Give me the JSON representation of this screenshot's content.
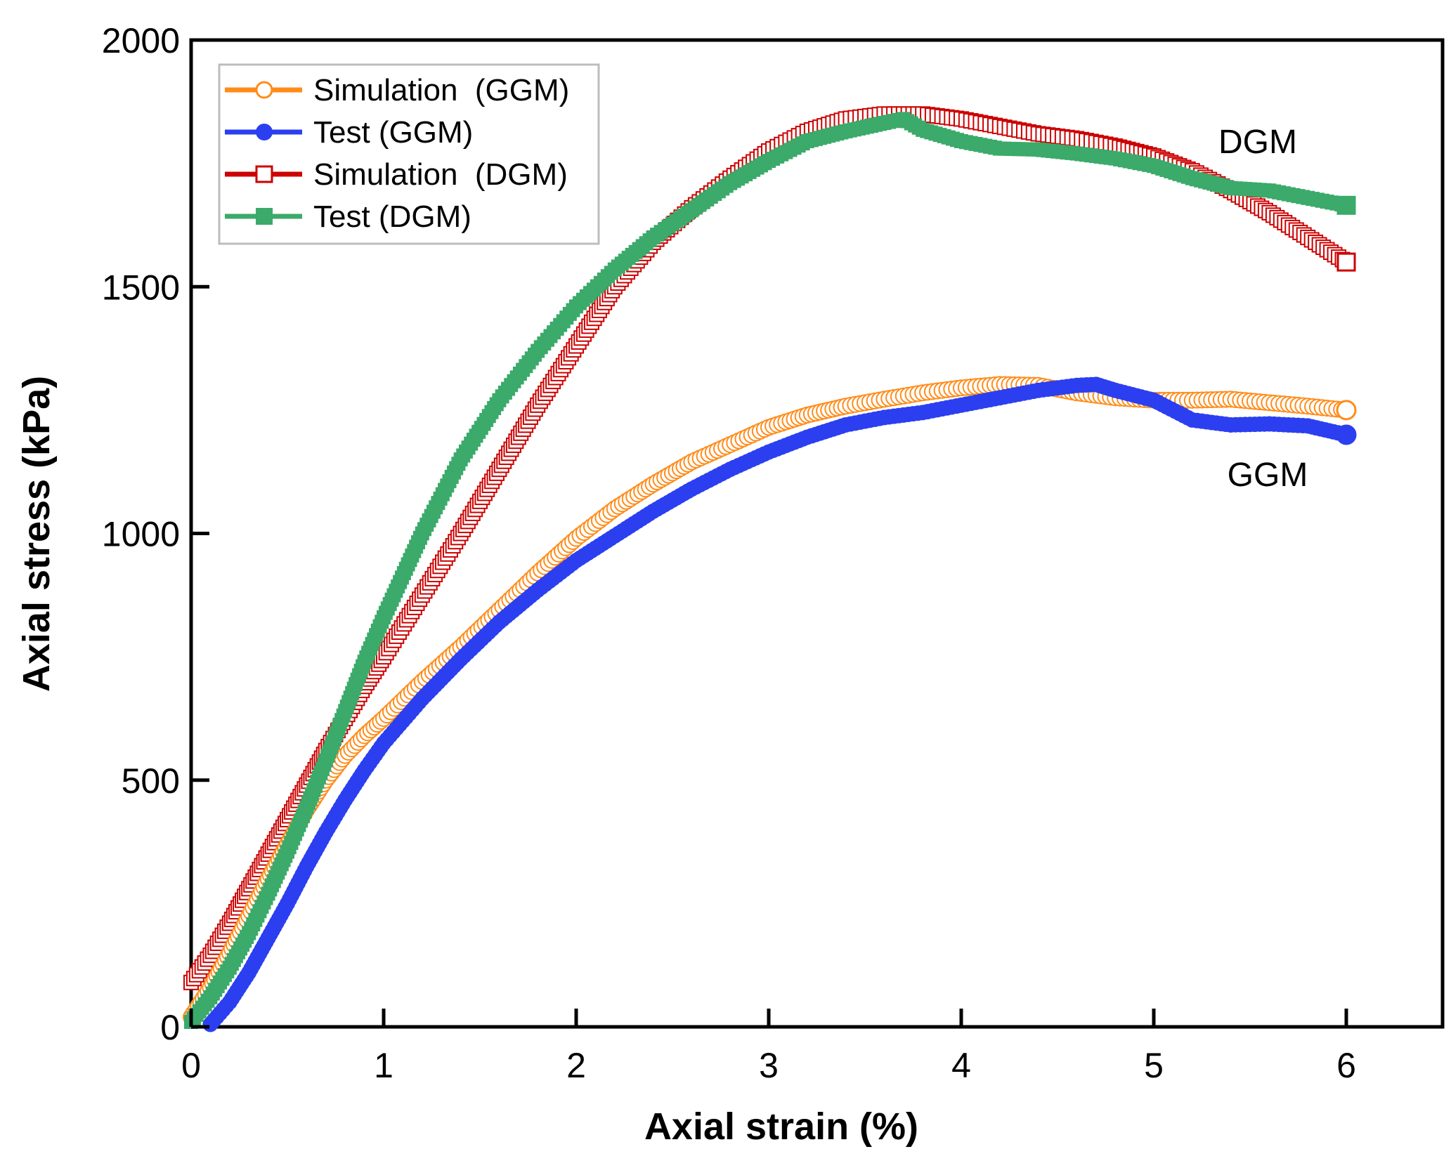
{
  "chart_data": {
    "type": "line",
    "title": "",
    "xlabel": "Axial strain (%)",
    "ylabel": "Axial stress (kPa)",
    "xlim": [
      0,
      6.5
    ],
    "ylim": [
      0,
      2000
    ],
    "xticks": [
      0,
      1,
      2,
      3,
      4,
      5,
      6
    ],
    "yticks": [
      0,
      500,
      1000,
      1500,
      2000
    ],
    "xtick_labels": [
      "0",
      "1",
      "2",
      "3",
      "4",
      "5",
      "6"
    ],
    "ytick_labels": [
      "0",
      "500",
      "1000",
      "1500",
      "2000"
    ],
    "grid": false,
    "legend_position": "top-left",
    "annotations": [
      {
        "text": "DGM",
        "x": 5.55,
        "y": 1790
      },
      {
        "text": "GGM",
        "x": 5.6,
        "y": 1115
      }
    ],
    "series": [
      {
        "name": "Simulation  (GGM)",
        "color": "#FF8C1A",
        "marker": "open-circle",
        "x": [
          0,
          0.1,
          0.2,
          0.3,
          0.4,
          0.5,
          0.6,
          0.7,
          0.8,
          0.9,
          1.0,
          1.2,
          1.4,
          1.6,
          1.8,
          2.0,
          2.2,
          2.4,
          2.6,
          2.8,
          3.0,
          3.2,
          3.4,
          3.6,
          3.8,
          4.0,
          4.2,
          4.4,
          4.6,
          4.8,
          5.0,
          5.2,
          5.4,
          5.6,
          5.8,
          6.0
        ],
        "y": [
          20,
          80,
          150,
          225,
          300,
          370,
          440,
          500,
          550,
          590,
          625,
          700,
          770,
          845,
          920,
          990,
          1050,
          1100,
          1145,
          1180,
          1215,
          1240,
          1258,
          1272,
          1285,
          1295,
          1302,
          1300,
          1285,
          1275,
          1270,
          1270,
          1272,
          1265,
          1258,
          1250
        ]
      },
      {
        "name": "Test (GGM)",
        "color": "#2B3FF0",
        "marker": "filled-circle",
        "x": [
          0.1,
          0.2,
          0.3,
          0.4,
          0.5,
          0.6,
          0.7,
          0.8,
          0.9,
          1.0,
          1.2,
          1.4,
          1.6,
          1.8,
          2.0,
          2.2,
          2.4,
          2.6,
          2.8,
          3.0,
          3.2,
          3.4,
          3.6,
          3.8,
          4.0,
          4.2,
          4.4,
          4.6,
          4.7,
          4.8,
          5.0,
          5.2,
          5.4,
          5.6,
          5.8,
          6.0
        ],
        "y": [
          5,
          50,
          110,
          180,
          250,
          325,
          395,
          460,
          520,
          575,
          665,
          745,
          820,
          885,
          945,
          995,
          1045,
          1090,
          1130,
          1165,
          1195,
          1220,
          1235,
          1245,
          1260,
          1275,
          1290,
          1300,
          1302,
          1290,
          1270,
          1230,
          1220,
          1222,
          1218,
          1200
        ]
      },
      {
        "name": "Simulation  (DGM)",
        "color": "#CC0000",
        "marker": "open-square",
        "x": [
          0,
          0.1,
          0.2,
          0.3,
          0.4,
          0.5,
          0.6,
          0.7,
          0.8,
          0.9,
          1.0,
          1.2,
          1.4,
          1.6,
          1.8,
          2.0,
          2.2,
          2.4,
          2.6,
          2.8,
          3.0,
          3.2,
          3.4,
          3.6,
          3.8,
          4.0,
          4.2,
          4.4,
          4.6,
          4.8,
          5.0,
          5.2,
          5.4,
          5.6,
          5.8,
          6.0
        ],
        "y": [
          90,
          145,
          210,
          280,
          350,
          420,
          490,
          560,
          625,
          690,
          750,
          875,
          1000,
          1130,
          1260,
          1380,
          1500,
          1590,
          1660,
          1720,
          1775,
          1815,
          1840,
          1850,
          1850,
          1840,
          1825,
          1810,
          1800,
          1785,
          1765,
          1735,
          1695,
          1650,
          1600,
          1550
        ]
      },
      {
        "name": "Test (DGM)",
        "color": "#3BAA6A",
        "marker": "filled-square",
        "x": [
          0,
          0.1,
          0.2,
          0.3,
          0.4,
          0.5,
          0.6,
          0.7,
          0.8,
          0.9,
          1.0,
          1.2,
          1.4,
          1.6,
          1.8,
          2.0,
          2.2,
          2.4,
          2.6,
          2.8,
          3.0,
          3.2,
          3.4,
          3.6,
          3.7,
          3.8,
          4.0,
          4.2,
          4.4,
          4.6,
          4.8,
          5.0,
          5.2,
          5.4,
          5.6,
          5.8,
          6.0
        ],
        "y": [
          10,
          60,
          120,
          190,
          270,
          355,
          445,
          540,
          640,
          740,
          830,
          1000,
          1150,
          1270,
          1370,
          1460,
          1535,
          1600,
          1655,
          1710,
          1755,
          1795,
          1815,
          1832,
          1840,
          1818,
          1795,
          1780,
          1778,
          1770,
          1760,
          1745,
          1720,
          1700,
          1695,
          1680,
          1665
        ]
      }
    ]
  }
}
